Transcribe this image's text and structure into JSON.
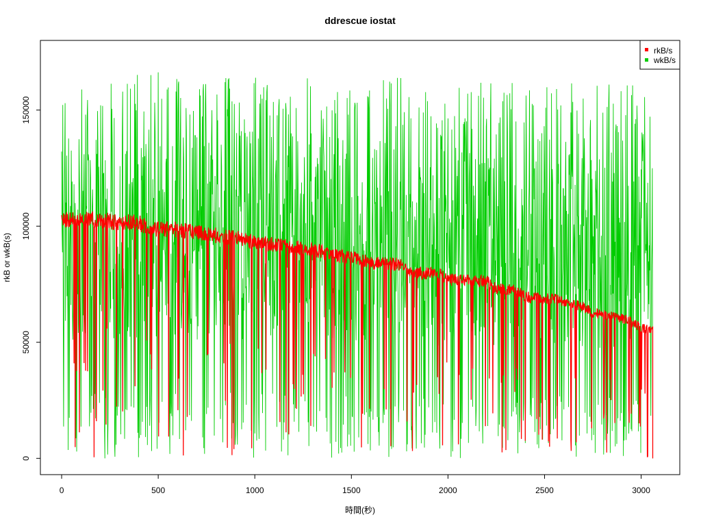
{
  "chart_data": {
    "type": "line",
    "title": "ddrescue iostat",
    "xlabel": "時間(秒)",
    "ylabel": "rkB or wkB(s)",
    "xlim": [
      -110,
      3200
    ],
    "ylim": [
      -7000,
      180000
    ],
    "x_ticks": [
      0,
      500,
      1000,
      1500,
      2000,
      2500,
      3000
    ],
    "x_tick_labels": [
      "0",
      "500",
      "1000",
      "1500",
      "2000",
      "2500",
      "3000"
    ],
    "y_ticks": [
      0,
      50000,
      100000,
      150000
    ],
    "y_tick_labels": [
      "0",
      "50000",
      "100000",
      "150000"
    ],
    "grid": false,
    "legend": {
      "position": "top-right",
      "entries": [
        "rkB/s",
        "wkB/s"
      ]
    },
    "series": [
      {
        "name": "rkB/s",
        "color": "#ff0000",
        "band_center": {
          "x": [
            0,
            150,
            250,
            400,
            450,
            600,
            700,
            800,
            900,
            1000,
            1150,
            1300,
            1400,
            1500,
            1600,
            1750,
            1800,
            1950,
            2000,
            2200,
            2250,
            2350,
            2400,
            2550,
            2700,
            2750,
            2850,
            2950,
            3000,
            3060
          ],
          "y": [
            103000,
            103500,
            102000,
            101500,
            99000,
            98500,
            97500,
            96000,
            95000,
            93000,
            91500,
            90000,
            87500,
            86500,
            84000,
            83500,
            80000,
            79500,
            77000,
            76500,
            73000,
            72500,
            69500,
            68500,
            65500,
            62500,
            61500,
            59000,
            56000,
            55500
          ]
        },
        "drop_min": 0
      },
      {
        "name": "wkB/s",
        "color": "#00cc00",
        "upper_envelope": {
          "x": [
            0,
            200,
            400,
            500,
            600,
            800,
            1000,
            1200,
            1400,
            1600,
            1800,
            2000,
            2200,
            2400,
            2600,
            2800,
            3000,
            3060
          ],
          "y": [
            145000,
            143000,
            145000,
            150000,
            147000,
            145000,
            146000,
            145000,
            144000,
            142000,
            140000,
            138000,
            138000,
            137000,
            136000,
            136000,
            136000,
            137000
          ]
        },
        "spike_max": 174000,
        "drop_min": 0
      }
    ]
  }
}
